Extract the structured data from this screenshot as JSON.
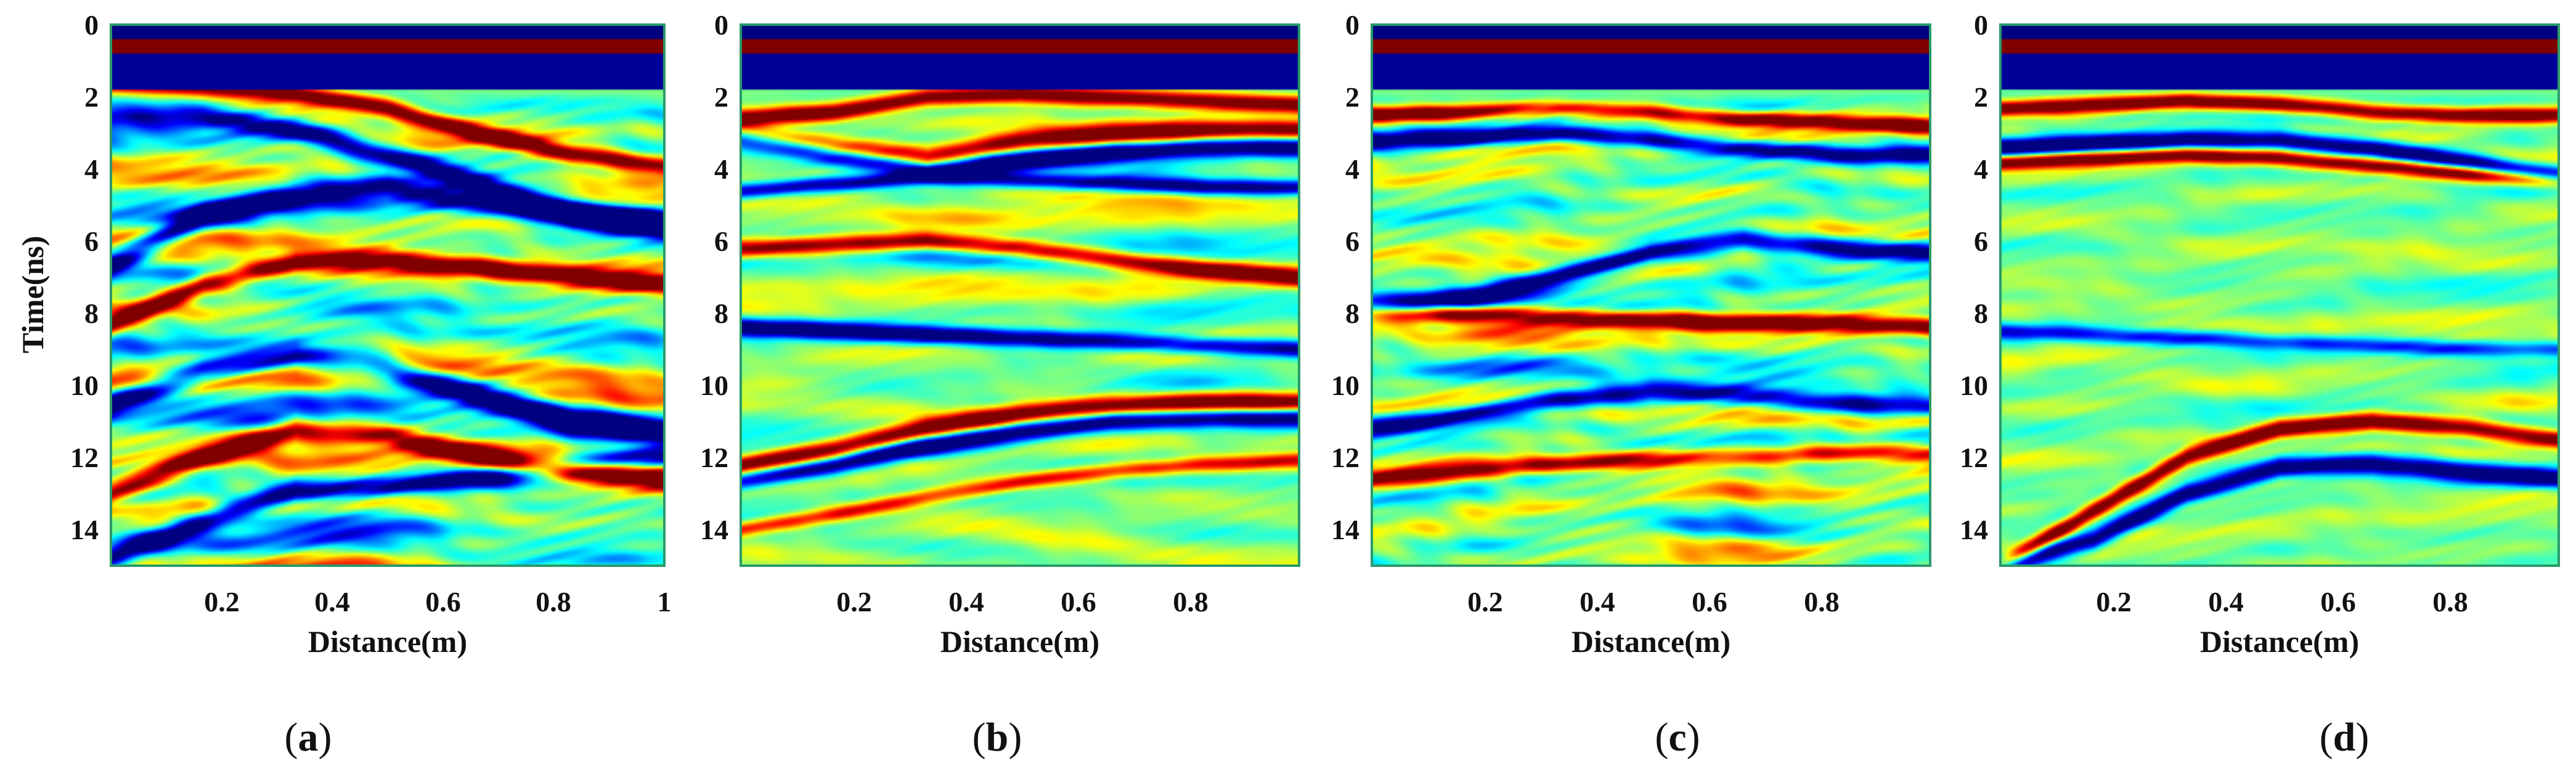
{
  "figure": {
    "colors": {
      "dark_blue": "#00008f",
      "blue": "#0030ff",
      "cyan": "#22e0ff",
      "green": "#30f08a",
      "yellow": "#ffe41a",
      "red": "#ff2a00",
      "dark_red": "#8a0000",
      "frame": "#2a9a6a"
    }
  },
  "chart_data": [
    {
      "type": "heatmap",
      "id": "a",
      "panel_label": "a",
      "title": "",
      "xlabel": "Distance(m)",
      "ylabel": "Time(ns)",
      "xlim": [
        0,
        1
      ],
      "ylim": [
        15,
        0
      ],
      "xticks": [
        "0.2",
        "0.4",
        "0.6",
        "0.8",
        "1"
      ],
      "yticks": [
        "0",
        "2",
        "4",
        "6",
        "8",
        "10",
        "12",
        "14"
      ],
      "colormap": "jet",
      "reflectors": [
        {
          "t": [
            1.6,
            1.7,
            1.9,
            2.3,
            3.0,
            3.6,
            3.9
          ],
          "amp": 1.0,
          "width": 0.35
        },
        {
          "t": [
            2.4,
            2.5,
            2.9,
            3.6,
            4.4,
            5.2,
            5.5
          ],
          "amp": -1.0,
          "width": 0.45
        },
        {
          "t": [
            6.6,
            5.3,
            4.7,
            4.5,
            4.9,
            5.3,
            5.5
          ],
          "amp": -1.0,
          "width": 0.5
        },
        {
          "t": [
            8.3,
            7.2,
            6.6,
            6.5,
            6.7,
            7.0,
            7.2
          ],
          "amp": 1.0,
          "width": 0.4
        },
        {
          "t": [
            10.5,
            9.6,
            9.2,
            9.5,
            10.3,
            11.0,
            11.3
          ],
          "amp": -1.0,
          "width": 0.5
        },
        {
          "t": [
            13.0,
            12.0,
            11.2,
            11.4,
            12.0,
            12.4,
            12.6
          ],
          "amp": 1.0,
          "width": 0.45
        },
        {
          "t": [
            14.8,
            13.8,
            12.9,
            12.8,
            12.6,
            12.2,
            12.0
          ],
          "amp": -0.9,
          "width": 0.45
        }
      ],
      "noise": 0.95,
      "texture": 1.0
    },
    {
      "type": "heatmap",
      "id": "b",
      "panel_label": "b",
      "title": "",
      "xlabel": "Distance(m)",
      "ylabel": "",
      "xlim": [
        0,
        1
      ],
      "ylim": [
        15,
        0
      ],
      "xticks": [
        "0.2",
        "0.4",
        "0.6",
        "0.8"
      ],
      "yticks": [
        "0",
        "2",
        "4",
        "6",
        "8",
        "10",
        "12",
        "14"
      ],
      "colormap": "jet",
      "reflectors": [
        {
          "t": [
            2.6,
            2.4,
            2.0,
            1.9,
            2.0,
            2.1,
            2.2
          ],
          "amp": 1.0,
          "width": 0.35
        },
        {
          "t": [
            3.0,
            3.4,
            3.7,
            3.2,
            3.0,
            2.9,
            2.9
          ],
          "amp": 0.9,
          "width": 0.4
        },
        {
          "t": [
            3.1,
            3.6,
            4.0,
            3.8,
            3.5,
            3.4,
            3.4
          ],
          "amp": -1.0,
          "width": 0.4
        },
        {
          "t": [
            4.6,
            4.4,
            4.2,
            4.3,
            4.4,
            4.5,
            4.5
          ],
          "amp": -0.8,
          "width": 0.3
        },
        {
          "t": [
            6.2,
            6.1,
            6.0,
            6.2,
            6.5,
            6.8,
            7.0
          ],
          "amp": 1.0,
          "width": 0.35
        },
        {
          "t": [
            8.4,
            8.5,
            8.6,
            8.7,
            8.8,
            8.9,
            9.0
          ],
          "amp": -1.0,
          "width": 0.35
        },
        {
          "t": [
            12.3,
            11.8,
            11.2,
            10.8,
            10.6,
            10.5,
            10.5
          ],
          "amp": 1.0,
          "width": 0.4
        },
        {
          "t": [
            12.6,
            12.2,
            11.7,
            11.3,
            11.0,
            10.9,
            10.9
          ],
          "amp": -1.0,
          "width": 0.4
        },
        {
          "t": [
            14.0,
            13.6,
            13.1,
            12.7,
            12.4,
            12.2,
            12.1
          ],
          "amp": 0.7,
          "width": 0.3
        }
      ],
      "noise": 0.35,
      "texture": 0.55
    },
    {
      "type": "heatmap",
      "id": "c",
      "panel_label": "c",
      "title": "",
      "xlabel": "Distance(m)",
      "ylabel": "",
      "xlim": [
        0,
        1
      ],
      "ylim": [
        15,
        0
      ],
      "xticks": [
        "0.2",
        "0.4",
        "0.6",
        "0.8"
      ],
      "yticks": [
        "0",
        "2",
        "4",
        "6",
        "8",
        "10",
        "12",
        "14"
      ],
      "colormap": "jet",
      "reflectors": [
        {
          "t": [
            2.5,
            2.4,
            2.3,
            2.4,
            2.6,
            2.7,
            2.8
          ],
          "amp": 1.0,
          "width": 0.3
        },
        {
          "t": [
            3.2,
            3.1,
            3.0,
            3.2,
            3.4,
            3.6,
            3.6
          ],
          "amp": -1.0,
          "width": 0.35
        },
        {
          "t": [
            7.9,
            7.6,
            7.0,
            6.3,
            6.0,
            6.2,
            6.3
          ],
          "amp": -1.0,
          "width": 0.4
        },
        {
          "t": [
            8.0,
            8.0,
            8.1,
            8.2,
            8.3,
            8.3,
            8.4
          ],
          "amp": 1.0,
          "width": 0.35
        },
        {
          "t": [
            11.2,
            10.8,
            10.4,
            10.2,
            10.3,
            10.5,
            10.6
          ],
          "amp": -1.0,
          "width": 0.4
        },
        {
          "t": [
            12.6,
            12.4,
            12.2,
            12.1,
            12.0,
            11.9,
            11.9
          ],
          "amp": 0.9,
          "width": 0.35
        }
      ],
      "noise": 0.9,
      "texture": 0.9
    },
    {
      "type": "heatmap",
      "id": "d",
      "panel_label": "d",
      "title": "",
      "xlabel": "Distance(m)",
      "ylabel": "",
      "xlim": [
        0,
        1
      ],
      "ylim": [
        15,
        0
      ],
      "xticks": [
        "0.2",
        "0.4",
        "0.6",
        "0.8"
      ],
      "yticks": [
        "0",
        "2",
        "4",
        "6",
        "8",
        "10",
        "12",
        "14"
      ],
      "colormap": "jet",
      "reflectors": [
        {
          "t": [
            2.3,
            2.2,
            2.1,
            2.2,
            2.4,
            2.5,
            2.5
          ],
          "amp": 1.0,
          "width": 0.3
        },
        {
          "t": [
            3.4,
            3.3,
            3.2,
            3.2,
            3.4,
            3.8,
            4.2
          ],
          "amp": -1.0,
          "width": 0.35
        },
        {
          "t": [
            3.8,
            3.7,
            3.6,
            3.7,
            3.9,
            4.1,
            4.3
          ],
          "amp": 0.9,
          "width": 0.3
        },
        {
          "t": [
            8.5,
            8.6,
            8.7,
            8.8,
            8.9,
            9.0,
            9.0
          ],
          "amp": -0.6,
          "width": 0.3
        },
        {
          "t": [
            15.0,
            13.5,
            12.0,
            11.2,
            11.0,
            11.2,
            11.5
          ],
          "amp": 1.0,
          "width": 0.35
        },
        {
          "t": [
            15.0,
            14.3,
            13.0,
            12.3,
            12.2,
            12.4,
            12.6
          ],
          "amp": -1.0,
          "width": 0.4
        }
      ],
      "noise": 0.4,
      "texture": 0.5
    }
  ]
}
